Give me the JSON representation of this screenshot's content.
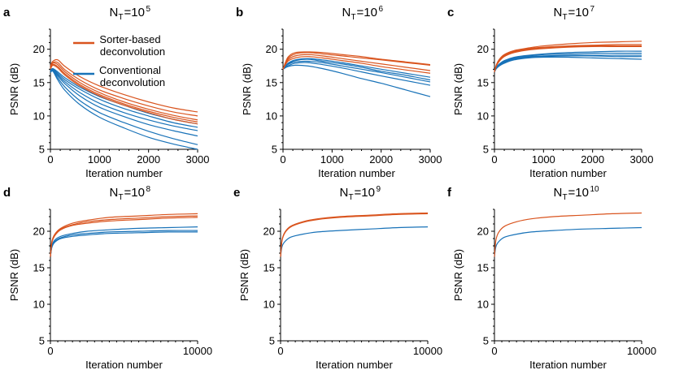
{
  "figure": {
    "legend": {
      "items": [
        {
          "label_line1": "Sorter-based",
          "label_line2": "deconvolution",
          "color": "#d9541e"
        },
        {
          "label_line1": "Conventional",
          "label_line2": "deconvolution",
          "color": "#1872b8"
        }
      ]
    }
  },
  "chart_data": [
    {
      "panel": "a",
      "type": "line",
      "title_base": "N",
      "title_sub": "T",
      "title_eq": "=10",
      "title_exp": "5",
      "xlabel": "Iteration number",
      "ylabel": "PSNR (dB)",
      "xlim": [
        0,
        3000
      ],
      "ylim": [
        5,
        23
      ],
      "xticks": [
        0,
        1000,
        2000,
        3000
      ],
      "yticks": [
        5,
        10,
        15,
        20
      ],
      "x": [
        0,
        50,
        150,
        300,
        600,
        1000,
        1500,
        2000,
        2500,
        3000
      ],
      "series": [
        {
          "name": "Sorter-based deconvolution",
          "color": "#d9541e",
          "values": [
            17.5,
            18.2,
            18.4,
            17.4,
            15.9,
            14.5,
            13.2,
            12.1,
            11.2,
            10.6
          ]
        },
        {
          "name": "Sorter-based deconvolution",
          "color": "#d9541e",
          "values": [
            17.3,
            18.0,
            18.0,
            16.9,
            15.4,
            13.9,
            12.6,
            11.5,
            10.6,
            10.0
          ]
        },
        {
          "name": "Sorter-based deconvolution",
          "color": "#d9541e",
          "values": [
            17.2,
            17.9,
            17.7,
            16.6,
            15.0,
            13.5,
            12.1,
            11.0,
            10.1,
            9.4
          ]
        },
        {
          "name": "Sorter-based deconvolution",
          "color": "#d9541e",
          "values": [
            17.1,
            17.7,
            17.4,
            16.3,
            14.7,
            13.2,
            11.8,
            10.7,
            9.8,
            9.1
          ]
        },
        {
          "name": "Sorter-based deconvolution",
          "color": "#d9541e",
          "values": [
            17.0,
            17.6,
            17.2,
            16.1,
            14.5,
            13.0,
            11.6,
            10.5,
            9.5,
            8.8
          ]
        },
        {
          "name": "Conventional deconvolution",
          "color": "#1872b8",
          "values": [
            16.9,
            17.1,
            16.6,
            15.7,
            14.3,
            12.9,
            11.6,
            10.4,
            9.5,
            8.8
          ]
        },
        {
          "name": "Conventional deconvolution",
          "color": "#1872b8",
          "values": [
            16.8,
            17.0,
            16.4,
            15.4,
            14.0,
            12.5,
            11.1,
            10.0,
            9.0,
            8.3
          ]
        },
        {
          "name": "Conventional deconvolution",
          "color": "#1872b8",
          "values": [
            16.8,
            17.0,
            16.2,
            15.1,
            13.5,
            11.9,
            10.5,
            9.4,
            8.5,
            7.8
          ]
        },
        {
          "name": "Conventional deconvolution",
          "color": "#1872b8",
          "values": [
            16.7,
            16.9,
            16.0,
            14.8,
            13.0,
            11.3,
            9.9,
            8.7,
            7.8,
            7.0
          ]
        },
        {
          "name": "Conventional deconvolution",
          "color": "#1872b8",
          "values": [
            16.6,
            16.8,
            15.7,
            14.3,
            12.3,
            10.5,
            9.0,
            7.7,
            6.6,
            5.7
          ]
        },
        {
          "name": "Conventional deconvolution",
          "color": "#1872b8",
          "values": [
            16.5,
            16.7,
            15.4,
            13.8,
            11.7,
            9.8,
            8.2,
            6.8,
            5.8,
            5.0
          ]
        }
      ]
    },
    {
      "panel": "b",
      "type": "line",
      "title_base": "N",
      "title_sub": "T",
      "title_eq": "=10",
      "title_exp": "6",
      "xlabel": "Iteration number",
      "ylabel": "PSNR (dB)",
      "xlim": [
        0,
        3000
      ],
      "ylim": [
        5,
        23
      ],
      "xticks": [
        0,
        1000,
        2000,
        3000
      ],
      "yticks": [
        5,
        10,
        15,
        20
      ],
      "x": [
        0,
        100,
        250,
        500,
        800,
        1200,
        1600,
        2000,
        2500,
        3000
      ],
      "series": [
        {
          "name": "Sorter-based deconvolution",
          "color": "#d9541e",
          "values": [
            17.0,
            18.8,
            19.5,
            19.6,
            19.5,
            19.2,
            18.9,
            18.5,
            18.1,
            17.7
          ]
        },
        {
          "name": "Sorter-based deconvolution",
          "color": "#d9541e",
          "values": [
            17.0,
            18.6,
            19.3,
            19.5,
            19.3,
            19.0,
            18.7,
            18.4,
            18.0,
            17.6
          ]
        },
        {
          "name": "Sorter-based deconvolution",
          "color": "#d9541e",
          "values": [
            17.0,
            18.4,
            19.0,
            19.2,
            19.0,
            18.6,
            18.2,
            17.8,
            17.3,
            16.8
          ]
        },
        {
          "name": "Sorter-based deconvolution",
          "color": "#d9541e",
          "values": [
            17.0,
            18.2,
            18.7,
            18.9,
            18.7,
            18.3,
            17.9,
            17.4,
            16.9,
            16.4
          ]
        },
        {
          "name": "Conventional deconvolution",
          "color": "#1872b8",
          "values": [
            17.0,
            17.9,
            18.4,
            18.6,
            18.4,
            18.0,
            17.5,
            17.0,
            16.4,
            15.8
          ]
        },
        {
          "name": "Conventional deconvolution",
          "color": "#1872b8",
          "values": [
            17.0,
            17.8,
            18.3,
            18.5,
            18.2,
            17.8,
            17.3,
            16.7,
            16.1,
            15.4
          ]
        },
        {
          "name": "Conventional deconvolution",
          "color": "#1872b8",
          "values": [
            17.0,
            17.7,
            18.1,
            18.2,
            18.0,
            17.5,
            17.0,
            16.5,
            15.8,
            15.1
          ]
        },
        {
          "name": "Conventional deconvolution",
          "color": "#1872b8",
          "values": [
            17.0,
            17.5,
            17.9,
            18.0,
            17.7,
            17.2,
            16.6,
            16.0,
            15.3,
            14.6
          ]
        },
        {
          "name": "Conventional deconvolution",
          "color": "#1872b8",
          "values": [
            17.0,
            17.4,
            17.6,
            17.5,
            17.1,
            16.4,
            15.6,
            14.9,
            13.9,
            12.9
          ]
        }
      ]
    },
    {
      "panel": "c",
      "type": "line",
      "title_base": "N",
      "title_sub": "T",
      "title_eq": "=10",
      "title_exp": "7",
      "xlabel": "Iteration number",
      "ylabel": "PSNR (dB)",
      "xlim": [
        0,
        3000
      ],
      "ylim": [
        5,
        23
      ],
      "xticks": [
        0,
        1000,
        2000,
        3000
      ],
      "yticks": [
        5,
        10,
        15,
        20
      ],
      "x": [
        0,
        40,
        100,
        200,
        400,
        700,
        1000,
        1500,
        2000,
        2500,
        3000
      ],
      "series": [
        {
          "name": "Sorter-based deconvolution",
          "color": "#d9541e",
          "values": [
            16.6,
            17.7,
            18.5,
            19.2,
            19.8,
            20.2,
            20.5,
            20.8,
            21.0,
            21.1,
            21.2
          ]
        },
        {
          "name": "Sorter-based deconvolution",
          "color": "#d9541e",
          "values": [
            16.6,
            17.6,
            18.4,
            19.1,
            19.7,
            20.1,
            20.3,
            20.5,
            20.6,
            20.7,
            20.7
          ]
        },
        {
          "name": "Sorter-based deconvolution",
          "color": "#d9541e",
          "values": [
            16.6,
            17.6,
            18.3,
            19.0,
            19.6,
            20.0,
            20.2,
            20.4,
            20.5,
            20.5,
            20.5
          ]
        },
        {
          "name": "Sorter-based deconvolution",
          "color": "#d9541e",
          "values": [
            16.6,
            17.5,
            18.2,
            18.9,
            19.5,
            19.9,
            20.1,
            20.3,
            20.4,
            20.4,
            20.4
          ]
        },
        {
          "name": "Conventional deconvolution",
          "color": "#1872b8",
          "values": [
            16.6,
            17.3,
            17.8,
            18.3,
            18.8,
            19.1,
            19.3,
            19.5,
            19.6,
            19.7,
            19.7
          ]
        },
        {
          "name": "Conventional deconvolution",
          "color": "#1872b8",
          "values": [
            16.6,
            17.3,
            17.7,
            18.2,
            18.7,
            19.0,
            19.2,
            19.3,
            19.4,
            19.4,
            19.4
          ]
        },
        {
          "name": "Conventional deconvolution",
          "color": "#1872b8",
          "values": [
            16.6,
            17.2,
            17.6,
            18.1,
            18.6,
            18.9,
            19.0,
            19.1,
            19.1,
            19.1,
            19.1
          ]
        },
        {
          "name": "Conventional deconvolution",
          "color": "#1872b8",
          "values": [
            16.6,
            17.2,
            17.6,
            18.0,
            18.5,
            18.8,
            18.9,
            19.0,
            19.0,
            18.9,
            18.9
          ]
        },
        {
          "name": "Conventional deconvolution",
          "color": "#1872b8",
          "values": [
            16.6,
            17.1,
            17.5,
            17.9,
            18.4,
            18.7,
            18.8,
            18.8,
            18.7,
            18.6,
            18.5
          ]
        }
      ]
    },
    {
      "panel": "d",
      "type": "line",
      "title_base": "N",
      "title_sub": "T",
      "title_eq": "=10",
      "title_exp": "8",
      "xlabel": "Iteration number",
      "ylabel": "PSNR (dB)",
      "xlim": [
        0,
        10000
      ],
      "ylim": [
        5,
        23
      ],
      "xticks": [
        0,
        10000
      ],
      "yticks": [
        5,
        10,
        15,
        20
      ],
      "x": [
        0,
        100,
        300,
        700,
        1500,
        2500,
        4000,
        6000,
        8000,
        10000
      ],
      "series": [
        {
          "name": "Sorter-based deconvolution",
          "color": "#d9541e",
          "values": [
            16.5,
            18.6,
            19.6,
            20.4,
            21.1,
            21.5,
            21.9,
            22.1,
            22.3,
            22.4
          ]
        },
        {
          "name": "Sorter-based deconvolution",
          "color": "#d9541e",
          "values": [
            16.5,
            18.5,
            19.5,
            20.3,
            20.9,
            21.3,
            21.6,
            21.8,
            22.0,
            22.1
          ]
        },
        {
          "name": "Sorter-based deconvolution",
          "color": "#d9541e",
          "values": [
            16.5,
            18.4,
            19.4,
            20.2,
            20.8,
            21.1,
            21.4,
            21.6,
            21.8,
            21.9
          ]
        },
        {
          "name": "Conventional deconvolution",
          "color": "#1872b8",
          "values": [
            16.5,
            18.0,
            18.8,
            19.3,
            19.7,
            20.0,
            20.2,
            20.4,
            20.5,
            20.6
          ]
        },
        {
          "name": "Conventional deconvolution",
          "color": "#1872b8",
          "values": [
            16.5,
            17.9,
            18.6,
            19.1,
            19.5,
            19.7,
            19.9,
            20.0,
            20.1,
            20.1
          ]
        },
        {
          "name": "Conventional deconvolution",
          "color": "#1872b8",
          "values": [
            16.5,
            17.8,
            18.5,
            19.0,
            19.3,
            19.5,
            19.7,
            19.8,
            19.9,
            19.9
          ]
        }
      ]
    },
    {
      "panel": "e",
      "type": "line",
      "title_base": "N",
      "title_sub": "T",
      "title_eq": "=10",
      "title_exp": "9",
      "xlabel": "Iteration number",
      "ylabel": "PSNR (dB)",
      "xlim": [
        0,
        10000
      ],
      "ylim": [
        5,
        23
      ],
      "xticks": [
        0,
        10000
      ],
      "yticks": [
        5,
        10,
        15,
        20
      ],
      "x": [
        0,
        100,
        300,
        700,
        1500,
        2500,
        4000,
        6000,
        8000,
        10000
      ],
      "series": [
        {
          "name": "Sorter-based deconvolution",
          "color": "#d9541e",
          "values": [
            16.5,
            18.8,
            19.9,
            20.7,
            21.3,
            21.7,
            22.0,
            22.2,
            22.4,
            22.5
          ]
        },
        {
          "name": "Sorter-based deconvolution",
          "color": "#d9541e",
          "values": [
            16.5,
            18.7,
            19.8,
            20.6,
            21.2,
            21.6,
            21.9,
            22.1,
            22.3,
            22.4
          ]
        },
        {
          "name": "Conventional deconvolution",
          "color": "#1872b8",
          "values": [
            16.5,
            17.9,
            18.6,
            19.2,
            19.6,
            19.9,
            20.1,
            20.3,
            20.5,
            20.6
          ]
        }
      ]
    },
    {
      "panel": "f",
      "type": "line",
      "title_base": "N",
      "title_sub": "T",
      "title_eq": "=10",
      "title_exp": "10",
      "xlabel": "Iteration number",
      "ylabel": "PSNR (dB)",
      "xlim": [
        0,
        10000
      ],
      "ylim": [
        5,
        23
      ],
      "xticks": [
        0,
        10000
      ],
      "yticks": [
        5,
        10,
        15,
        20
      ],
      "x": [
        0,
        100,
        300,
        700,
        1500,
        2500,
        4000,
        6000,
        8000,
        10000
      ],
      "series": [
        {
          "name": "Sorter-based deconvolution",
          "color": "#d9541e",
          "values": [
            16.5,
            18.8,
            19.9,
            20.7,
            21.3,
            21.7,
            22.0,
            22.2,
            22.4,
            22.5
          ]
        },
        {
          "name": "Conventional deconvolution",
          "color": "#1872b8",
          "values": [
            16.5,
            17.9,
            18.6,
            19.2,
            19.6,
            19.9,
            20.1,
            20.3,
            20.4,
            20.5
          ]
        }
      ]
    }
  ]
}
